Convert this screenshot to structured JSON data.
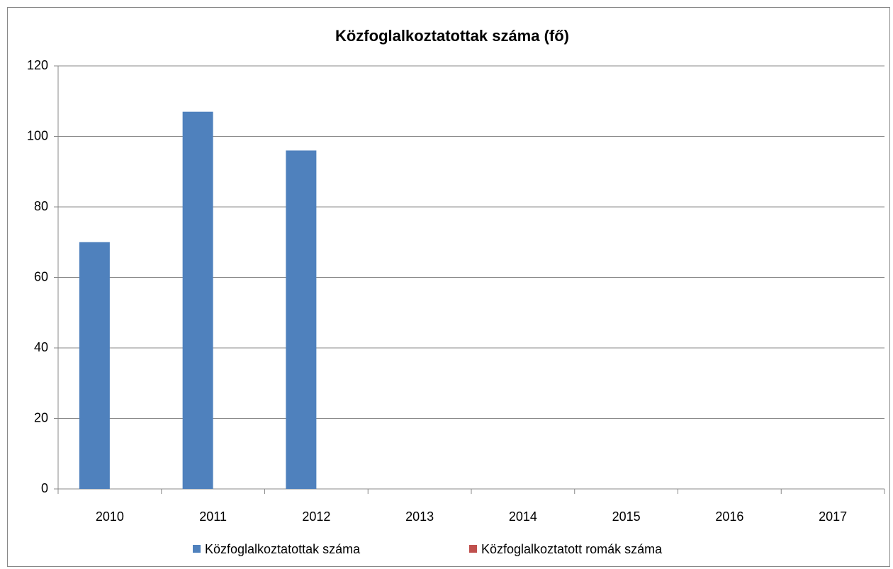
{
  "chart_data": {
    "type": "bar",
    "title": "Közfoglalkoztatottak száma (fő)",
    "categories": [
      "2010",
      "2011",
      "2012",
      "2013",
      "2014",
      "2015",
      "2016",
      "2017"
    ],
    "series": [
      {
        "name": "Közfoglalkoztatottak száma",
        "color": "#4f81bd",
        "values": [
          70,
          107,
          96,
          null,
          null,
          null,
          null,
          null
        ]
      },
      {
        "name": "Közfoglalkoztatott romák száma",
        "color": "#c0504d",
        "values": [
          null,
          null,
          null,
          null,
          null,
          null,
          null,
          null
        ]
      }
    ],
    "ylim": [
      0,
      120
    ],
    "yticks": [
      0,
      20,
      40,
      60,
      80,
      100,
      120
    ],
    "grid": true,
    "legend": "bottom"
  }
}
